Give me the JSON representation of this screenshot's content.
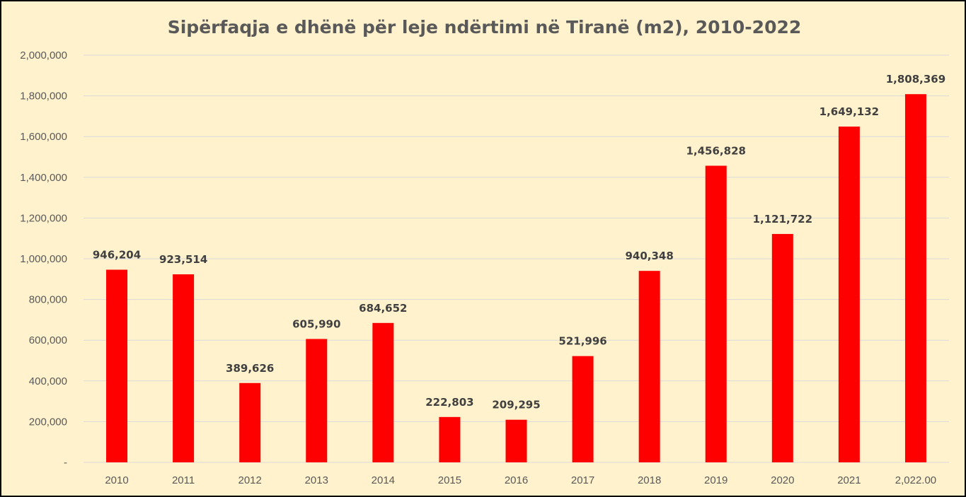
{
  "chart_data": {
    "type": "bar",
    "title": "Sipërfaqja e dhënë për leje ndërtimi në Tiranë (m2), 2010-2022",
    "categories": [
      "2010",
      "2011",
      "2012",
      "2013",
      "2014",
      "2015",
      "2016",
      "2017",
      "2018",
      "2019",
      "2020",
      "2021",
      "2,022.00"
    ],
    "values": [
      946204,
      923514,
      389626,
      605990,
      684652,
      222803,
      209295,
      521996,
      940348,
      1456828,
      1121722,
      1649132,
      1808369
    ],
    "data_labels": [
      "946,204",
      "923,514",
      "389,626",
      "605,990",
      "684,652",
      "222,803",
      "209,295",
      "521,996",
      "940,348",
      "1,456,828",
      "1,121,722",
      "1,649,132",
      "1,808,369"
    ],
    "y_ticks": [
      "-",
      "200,000",
      "400,000",
      "600,000",
      "800,000",
      "1,000,000",
      "1,200,000",
      "1,400,000",
      "1,600,000",
      "1,800,000",
      "2,000,000"
    ],
    "ylim": [
      0,
      2000000
    ],
    "xlabel": "",
    "ylabel": "",
    "grid": true,
    "legend": "none",
    "bar_color": "#ff0000",
    "background_color": "#fff2cc",
    "gridline_color": "#d9d9d9"
  }
}
